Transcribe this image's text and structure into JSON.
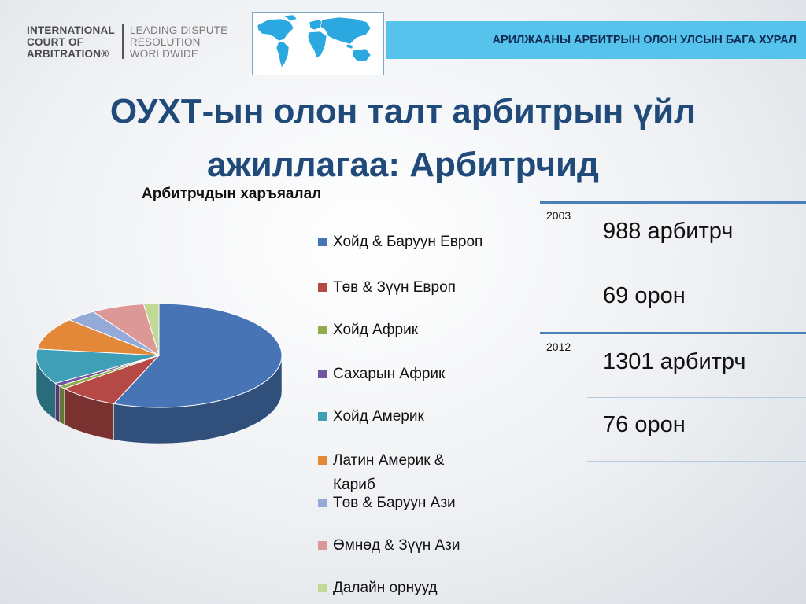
{
  "logo": {
    "left_lines": [
      "INTERNATIONAL",
      "COURT OF",
      "ARBITRATION®"
    ],
    "right_lines": [
      "LEADING DISPUTE",
      "RESOLUTION",
      "WORLDWIDE"
    ]
  },
  "banner": {
    "text": "АРИЛЖААНЫ АРБИТРЫН ОЛОН УЛСЫН БАГА ХУРАЛ"
  },
  "slide": {
    "title_line1": "ОУХТ-ын олон талт арбитрын үйл",
    "title_line2": "ажиллагаа: Арбитрчид"
  },
  "colors": {
    "banner_bg": "#56c3ec",
    "title": "#204a7a",
    "rule": "#4a80b8"
  },
  "chart_data": {
    "type": "pie",
    "title": "Арбитрчдын харъяалал",
    "legend_position": "right",
    "categories": [
      "Хойд & Баруун Европ",
      "Төв & Зүүн Европ",
      "Хойд Африк",
      "Сахарын Африк",
      "Хойд Америк",
      "Латин Америк & Кариб",
      "Төв & Баруун Ази",
      "Өмнөд & Зүүн Ази",
      "Далайн орнууд"
    ],
    "values": [
      56,
      8,
      1,
      1,
      11,
      10,
      4,
      7,
      2
    ],
    "colors": [
      "#4674b4",
      "#b44946",
      "#8fad4c",
      "#7256a0",
      "#3e9fb6",
      "#e28838",
      "#94aad9",
      "#dc9896",
      "#c2d995"
    ]
  },
  "table": {
    "rows": [
      {
        "year": "2003",
        "arbitrators": "988 арбитрч",
        "countries": "69 орон"
      },
      {
        "year": "2012",
        "arbitrators": "1301 арбитрч",
        "countries": "76 орон"
      }
    ]
  }
}
